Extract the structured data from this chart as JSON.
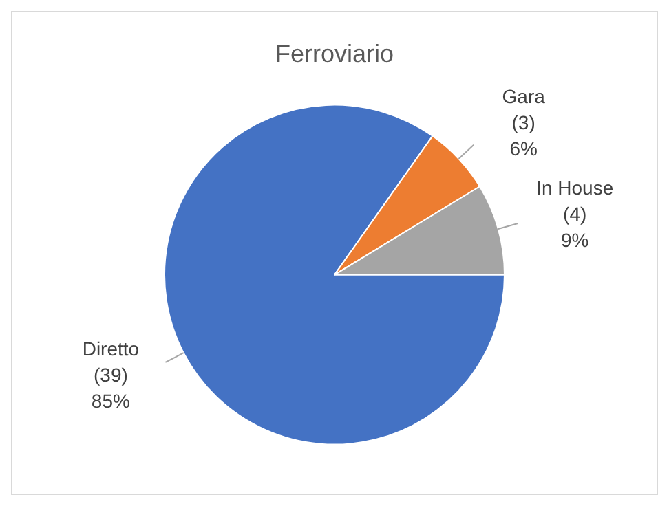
{
  "chart_data": {
    "type": "pie",
    "title": "Ferroviario",
    "categories": [
      "Diretto",
      "Gara",
      "In House"
    ],
    "values": [
      39,
      3,
      4
    ],
    "colors": [
      "#4472c4",
      "#ed7d31",
      "#a5a5a5"
    ],
    "value_labels": [
      "(39)\n85%",
      "(3)\n6%",
      "(4)\n9%"
    ],
    "legend": false
  }
}
